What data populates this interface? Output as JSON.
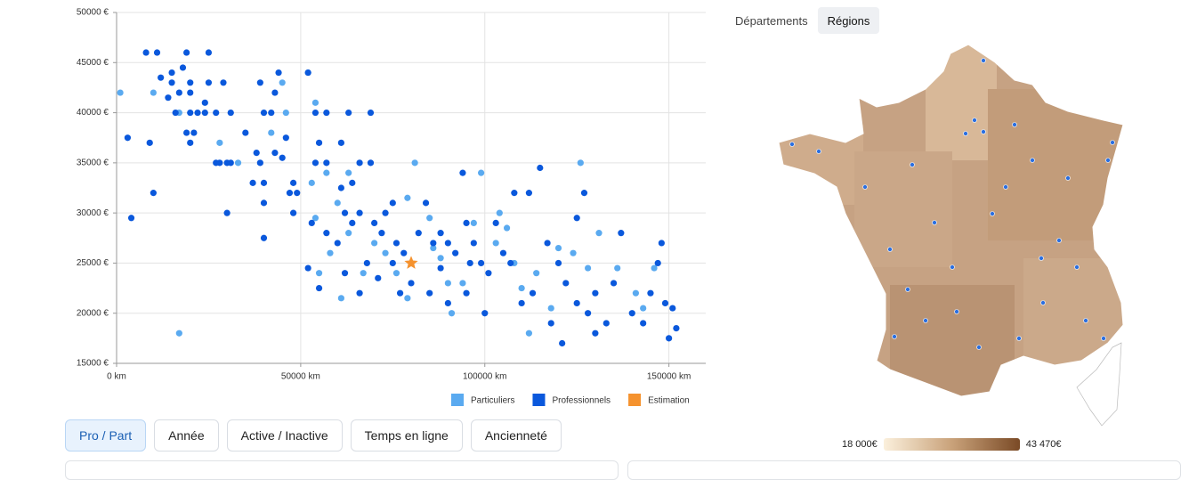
{
  "chart_data": {
    "type": "scatter",
    "xlim": [
      0,
      160000
    ],
    "ylim": [
      15000,
      50000
    ],
    "xticks": [
      {
        "value": 0,
        "label": "0 km"
      },
      {
        "value": 50000,
        "label": "50000 km"
      },
      {
        "value": 100000,
        "label": "100000 km"
      },
      {
        "value": 150000,
        "label": "150000 km"
      }
    ],
    "yticks": [
      {
        "value": 15000,
        "label": "15000 €"
      },
      {
        "value": 20000,
        "label": "20000 €"
      },
      {
        "value": 25000,
        "label": "25000 €"
      },
      {
        "value": 30000,
        "label": "30000 €"
      },
      {
        "value": 35000,
        "label": "35000 €"
      },
      {
        "value": 40000,
        "label": "40000 €"
      },
      {
        "value": 45000,
        "label": "45000 €"
      },
      {
        "value": 50000,
        "label": "50000 €"
      }
    ],
    "grid": true,
    "series": [
      {
        "name": "Particuliers",
        "color": "#5aaaf0",
        "marker": "circle",
        "x": [
          1000,
          10000,
          17000,
          28000,
          17000,
          33000,
          42000,
          46000,
          45000,
          52000,
          54000,
          53000,
          57000,
          63000,
          60000,
          54000,
          58000,
          63000,
          67000,
          70000,
          73000,
          76000,
          79000,
          80000,
          81000,
          79000,
          85000,
          88000,
          91000,
          94000,
          99000,
          97000,
          103000,
          106000,
          108000,
          110000,
          112000,
          114000,
          118000,
          120000,
          124000,
          126000,
          128000,
          131000,
          136000,
          141000,
          143000,
          146000,
          61000,
          55000,
          86000,
          104000,
          90000
        ],
        "values": [
          42000,
          42000,
          40000,
          37000,
          18000,
          35000,
          38000,
          40000,
          43000,
          44000,
          41000,
          33000,
          34000,
          34000,
          31000,
          29500,
          26000,
          28000,
          24000,
          27000,
          26000,
          24000,
          21500,
          25000,
          35000,
          31500,
          29500,
          25500,
          20000,
          23000,
          34000,
          29000,
          27000,
          28500,
          25000,
          22500,
          18000,
          24000,
          20500,
          26500,
          26000,
          35000,
          24500,
          28000,
          24500,
          22000,
          20500,
          24500,
          21500,
          24000,
          26500,
          30000,
          23000
        ]
      },
      {
        "name": "Professionnels",
        "color": "#0a58dc",
        "marker": "circle",
        "x": [
          8000,
          11000,
          19000,
          25000,
          12000,
          15000,
          18000,
          15000,
          20000,
          25000,
          29000,
          14000,
          17000,
          20000,
          24000,
          16000,
          20000,
          22000,
          24000,
          27000,
          31000,
          19000,
          21000,
          9000,
          20000,
          3000,
          27000,
          28000,
          30000,
          31000,
          35000,
          38000,
          39000,
          37000,
          40000,
          43000,
          45000,
          44000,
          43000,
          39000,
          40000,
          42000,
          46000,
          48000,
          47000,
          49000,
          10000,
          4000,
          30000,
          40000,
          40000,
          48000,
          52000,
          54000,
          57000,
          55000,
          54000,
          57000,
          61000,
          63000,
          69000,
          66000,
          69000,
          61000,
          64000,
          53000,
          57000,
          60000,
          62000,
          64000,
          66000,
          70000,
          73000,
          75000,
          72000,
          76000,
          78000,
          82000,
          84000,
          86000,
          88000,
          90000,
          92000,
          94000,
          95000,
          97000,
          99000,
          101000,
          103000,
          105000,
          107000,
          108000,
          112000,
          115000,
          117000,
          120000,
          122000,
          125000,
          128000,
          130000,
          133000,
          135000,
          137000,
          140000,
          143000,
          145000,
          147000,
          149000,
          150000,
          151000,
          152000,
          148000,
          127000,
          125000,
          118000,
          121000,
          110000,
          100000,
          95000,
          90000,
          85000,
          80000,
          77000,
          71000,
          66000,
          52000,
          55000,
          62000,
          68000,
          75000,
          130000,
          113000,
          96000,
          88000
        ],
        "values": [
          46000,
          46000,
          46000,
          46000,
          43500,
          44000,
          44500,
          43000,
          43000,
          43000,
          43000,
          41500,
          42000,
          42000,
          41000,
          40000,
          40000,
          40000,
          40000,
          40000,
          40000,
          38000,
          38000,
          37000,
          37000,
          37500,
          35000,
          35000,
          35000,
          35000,
          38000,
          36000,
          35000,
          33000,
          33000,
          36000,
          35500,
          44000,
          42000,
          43000,
          40000,
          40000,
          37500,
          33000,
          32000,
          32000,
          32000,
          29500,
          30000,
          31000,
          27500,
          30000,
          44000,
          40000,
          40000,
          37000,
          35000,
          35000,
          37000,
          40000,
          40000,
          35000,
          35000,
          32500,
          33000,
          29000,
          28000,
          27000,
          30000,
          29000,
          30000,
          29000,
          30000,
          31000,
          28000,
          27000,
          26000,
          28000,
          31000,
          27000,
          28000,
          27000,
          26000,
          34000,
          29000,
          27000,
          25000,
          24000,
          29000,
          26000,
          25000,
          32000,
          32000,
          34500,
          27000,
          25000,
          23000,
          21000,
          20000,
          22000,
          19000,
          23000,
          28000,
          20000,
          19000,
          22000,
          25000,
          21000,
          17500,
          20500,
          18500,
          27000,
          32000,
          29500,
          19000,
          17000,
          21000,
          20000,
          22000,
          21000,
          22000,
          23000,
          22000,
          23500,
          22000,
          24500,
          22500,
          24000,
          25000,
          25000,
          18000,
          22000,
          25000,
          24500
        ]
      },
      {
        "name": "Estimation",
        "color": "#f5922e",
        "marker": "star",
        "x": [
          80000
        ],
        "values": [
          25000
        ]
      }
    ]
  },
  "filters": [
    "Pro / Part",
    "Année",
    "Active / Inactive",
    "Temps en ligne",
    "Ancienneté"
  ],
  "map": {
    "tabs": [
      "Départements",
      "Régions"
    ],
    "legend": {
      "min": "18 000€",
      "max": "43 470€"
    }
  }
}
